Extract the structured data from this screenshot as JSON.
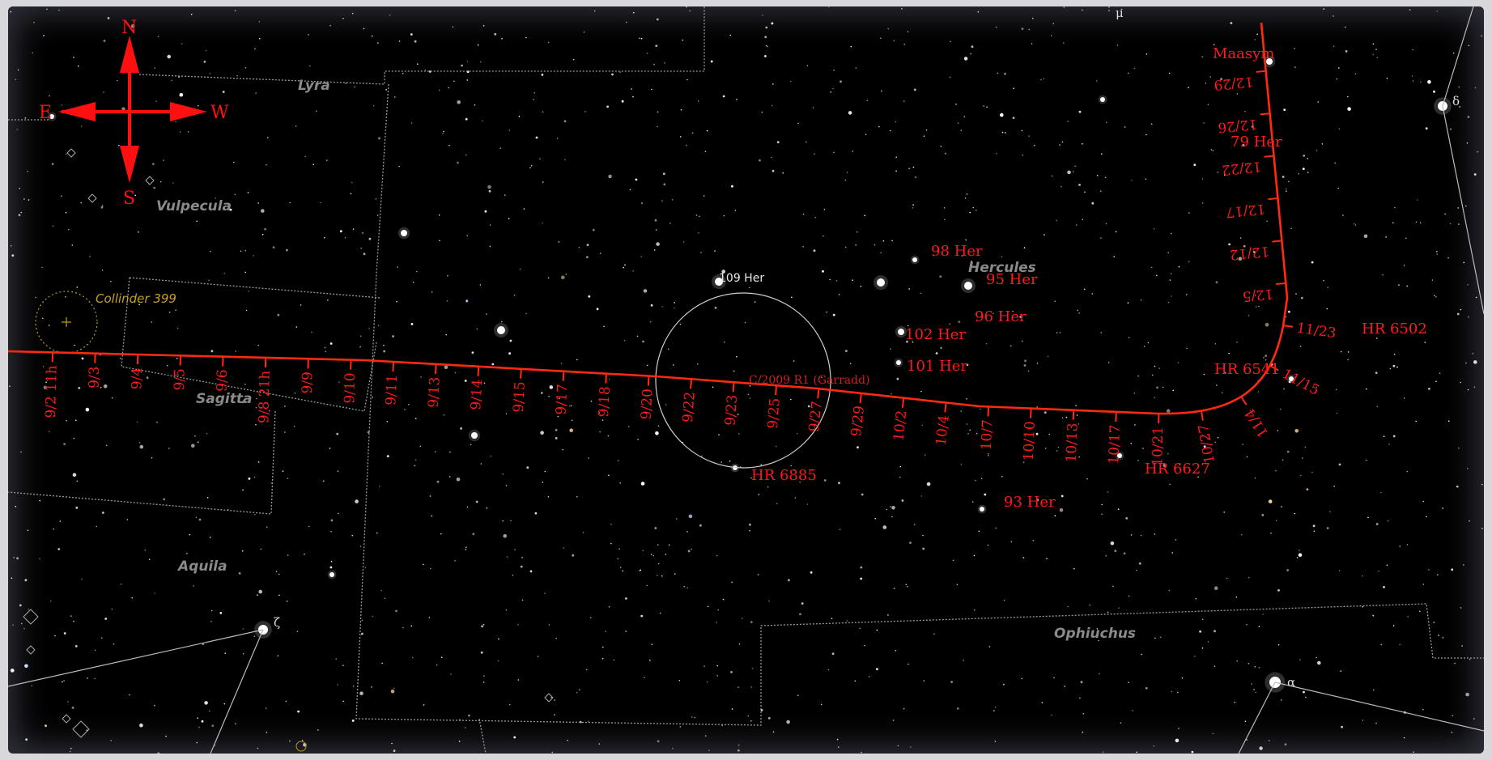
{
  "compass": {
    "north": "N",
    "south": "S",
    "east": "E",
    "west": "W"
  },
  "constellations": [
    "Lyra",
    "Vulpecula",
    "Sagitta",
    "Aquila",
    "Hercules",
    "Ophiuchus"
  ],
  "deep_sky": {
    "cluster": "Collinder 399"
  },
  "comet": {
    "name": "C/2009 R1 (Garradd)",
    "field_star": "109 Her"
  },
  "star_labels": [
    "Maasym",
    "79 Her",
    "98 Her",
    "95 Her",
    "96 Her",
    "102 Her",
    "101 Her",
    "HR 6541",
    "HR 6502",
    "HR 6885",
    "HR 6627",
    "93 Her"
  ],
  "greek_labels": [
    "μ",
    "δ",
    "ζ",
    "α"
  ],
  "path_dates": [
    "9/2 11h",
    "9/3",
    "9/4",
    "9/5",
    "9/6",
    "9/8 21h",
    "9/9",
    "9/10",
    "9/11",
    "9/13",
    "9/14",
    "9/15",
    "9/17",
    "9/18",
    "9/20",
    "9/22",
    "9/23",
    "9/25",
    "9/27",
    "9/29",
    "10/2",
    "10/4",
    "10/7",
    "10/10",
    "10/13",
    "10/17",
    "10/21",
    "10/27",
    "11/4",
    "11/15",
    "11/23",
    "12/5",
    "12/12",
    "12/17",
    "12/22",
    "12/26",
    "12/29"
  ],
  "colors": {
    "path": "#ff2a10",
    "labels": "#ff1a1a",
    "compass": "#ff1010",
    "boundary": "#9a9a9a"
  }
}
